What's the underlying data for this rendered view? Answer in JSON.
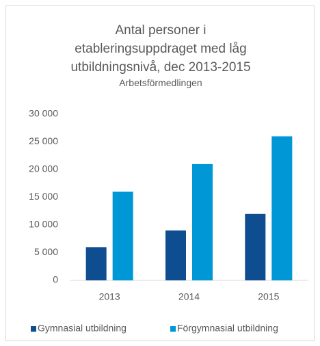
{
  "chart_data": {
    "type": "bar",
    "title": "Antal personer i etableringsuppdraget med låg utbildningsnivå, dec 2013-2015",
    "subtitle": "Arbetsförmedlingen",
    "categories": [
      "2013",
      "2014",
      "2015"
    ],
    "series": [
      {
        "name": "Gymnasial utbildning",
        "color": "#0e4d8f",
        "values": [
          6000,
          9000,
          12000
        ]
      },
      {
        "name": "Förgymnasial utbildning",
        "color": "#0097d7",
        "values": [
          16000,
          21000,
          26000
        ]
      }
    ],
    "ylim": [
      0,
      30000
    ],
    "yticks": [
      0,
      {
        "value": 5000,
        "label": "5 000"
      },
      {
        "value": 10000,
        "label": "10 000"
      },
      {
        "value": 15000,
        "label": "15 000"
      },
      {
        "value": 20000,
        "label": "20 000"
      },
      {
        "value": 25000,
        "label": "25 000"
      },
      {
        "value": 30000,
        "label": "30 000"
      }
    ],
    "grid": false,
    "legend": "bottom"
  }
}
